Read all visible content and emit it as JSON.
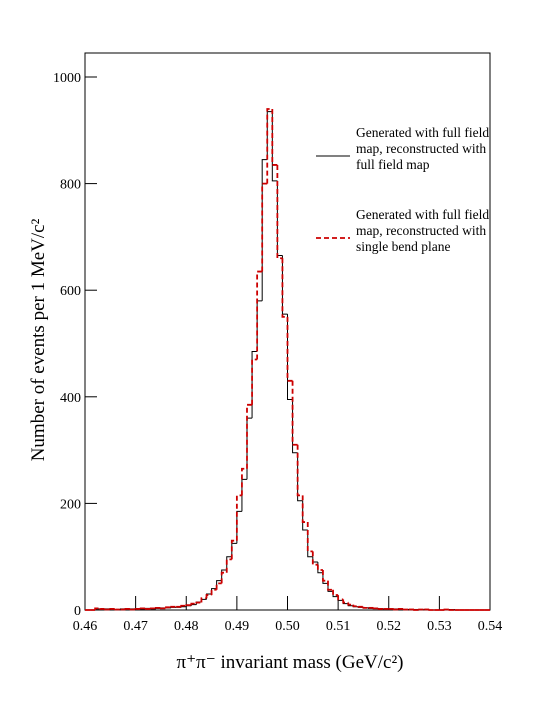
{
  "chart_data": {
    "type": "histogram",
    "xlabel": "π⁺π⁻ invariant mass (GeV/c²)",
    "ylabel": "Number of events per 1 MeV/c²",
    "bins": [
      0.46,
      0.461,
      0.462,
      0.463,
      0.464,
      0.465,
      0.466,
      0.467,
      0.468,
      0.469,
      0.47,
      0.471,
      0.472,
      0.473,
      0.474,
      0.475,
      0.476,
      0.477,
      0.478,
      0.479,
      0.48,
      0.481,
      0.482,
      0.483,
      0.484,
      0.485,
      0.486,
      0.487,
      0.488,
      0.489,
      0.49,
      0.491,
      0.492,
      0.493,
      0.494,
      0.495,
      0.496,
      0.497,
      0.498,
      0.499,
      0.5,
      0.501,
      0.502,
      0.503,
      0.504,
      0.505,
      0.506,
      0.507,
      0.508,
      0.509,
      0.51,
      0.511,
      0.512,
      0.513,
      0.514,
      0.515,
      0.516,
      0.517,
      0.518,
      0.519,
      0.52,
      0.521,
      0.522,
      0.523,
      0.524,
      0.525,
      0.526,
      0.527,
      0.528,
      0.529,
      0.53,
      0.531,
      0.532,
      0.533,
      0.534,
      0.535,
      0.536,
      0.537,
      0.538,
      0.539,
      0.54
    ],
    "series": [
      {
        "name": "Generated with full field map, reconstructed with full field map",
        "color": "#000000",
        "dash": false,
        "values": [
          0,
          0,
          2,
          1,
          2,
          1,
          1,
          2,
          1,
          2,
          2,
          2,
          3,
          2,
          3,
          4,
          4,
          5,
          5,
          6,
          8,
          10,
          15,
          20,
          30,
          40,
          55,
          75,
          100,
          125,
          185,
          245,
          360,
          485,
          580,
          845,
          935,
          805,
          665,
          555,
          395,
          295,
          205,
          150,
          100,
          90,
          70,
          50,
          35,
          25,
          18,
          12,
          8,
          6,
          5,
          4,
          3,
          3,
          2,
          2,
          2,
          2,
          1,
          1,
          1,
          1,
          0,
          1,
          0,
          0,
          0,
          0,
          1,
          0,
          0,
          0,
          0,
          0,
          0,
          0
        ]
      },
      {
        "name": "Generated with full field map, reconstructed with single bend plane",
        "color": "#cc0000",
        "dash": true,
        "values": [
          0,
          0,
          3,
          2,
          1,
          2,
          1,
          1,
          2,
          1,
          2,
          3,
          2,
          3,
          4,
          3,
          5,
          6,
          6,
          8,
          9,
          12,
          14,
          22,
          28,
          38,
          50,
          70,
          95,
          130,
          215,
          265,
          385,
          470,
          635,
          800,
          940,
          835,
          660,
          550,
          430,
          310,
          215,
          165,
          110,
          85,
          75,
          55,
          38,
          28,
          20,
          14,
          10,
          7,
          6,
          4,
          4,
          3,
          2,
          2,
          2,
          1,
          2,
          1,
          1,
          0,
          1,
          1,
          0,
          0,
          0,
          1,
          0,
          0,
          0,
          0,
          0,
          0,
          0,
          0
        ]
      }
    ],
    "xlim": [
      0.46,
      0.54
    ],
    "ylim": [
      0,
      1000
    ],
    "xticks": [
      0.46,
      0.47,
      0.48,
      0.49,
      {
        "value": 0.5,
        "label": "0.50"
      },
      0.51,
      0.52,
      0.53,
      0.54
    ],
    "yticks": [
      0,
      200,
      400,
      600,
      800,
      1000
    ]
  }
}
